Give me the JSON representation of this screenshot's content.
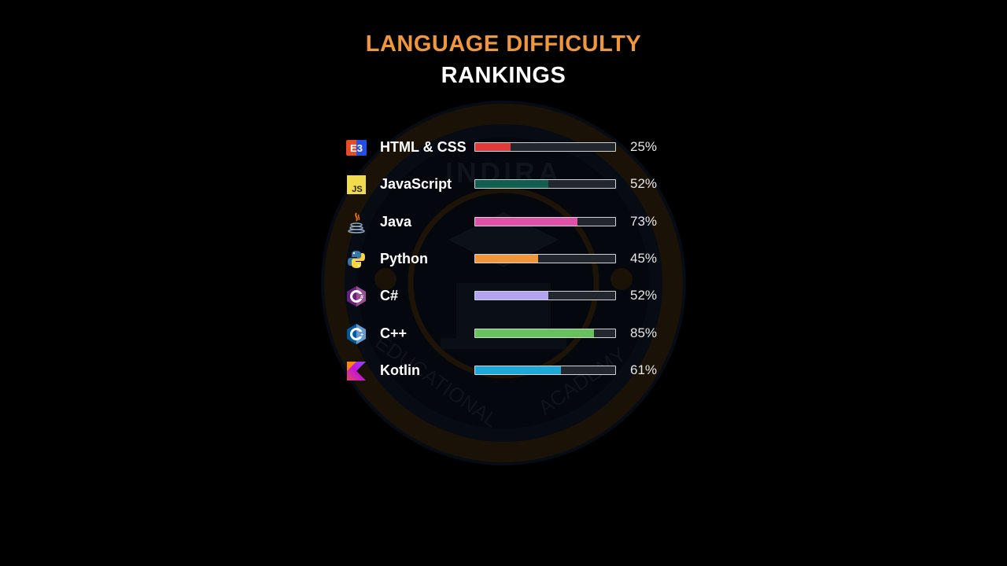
{
  "chart_data": {
    "type": "bar",
    "title": "LANGUAGE DIFFICULTY",
    "subtitle": "RANKINGS",
    "orientation": "horizontal",
    "ylim": [
      0,
      100
    ],
    "categories": [
      "HTML & CSS",
      "JavaScript",
      "Java",
      "Python",
      "C#",
      "C++",
      "Kotlin"
    ],
    "values": [
      25,
      52,
      73,
      45,
      52,
      85,
      61
    ],
    "value_labels": [
      "25%",
      "52%",
      "73%",
      "45%",
      "52%",
      "85%",
      "61%"
    ],
    "colors": [
      "#e03a3a",
      "#0f5e50",
      "#e050a8",
      "#f0963c",
      "#b2a4f0",
      "#66c25a",
      "#1ea8d8"
    ],
    "icons": [
      "css3-icon",
      "javascript-icon",
      "java-icon",
      "python-icon",
      "csharp-icon",
      "cplusplus-icon",
      "kotlin-icon"
    ]
  }
}
